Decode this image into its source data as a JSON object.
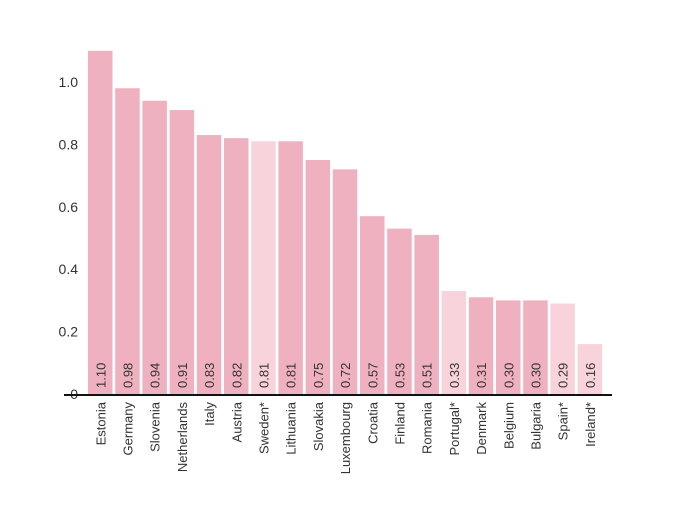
{
  "chart_data": {
    "type": "bar",
    "title": "",
    "xlabel": "",
    "ylabel": "",
    "ylim": [
      0,
      1.1
    ],
    "yticks": [
      0,
      0.2,
      0.4,
      0.6,
      0.8,
      1.0
    ],
    "ytick_labels": [
      "0",
      "0.2",
      "0.4",
      "0.6",
      "0.8",
      "1.0"
    ],
    "grid": false,
    "categories": [
      "Estonia",
      "Germany",
      "Slovenia",
      "Netherlands",
      "Italy",
      "Austria",
      "Sweden*",
      "Lithuania",
      "Slovakia",
      "Luxembourg",
      "Croatia",
      "Finland",
      "Romania",
      "Portugal*",
      "Denmark",
      "Belgium",
      "Bulgaria",
      "Spain*",
      "Ireland*"
    ],
    "values": [
      1.1,
      0.98,
      0.94,
      0.91,
      0.83,
      0.82,
      0.81,
      0.81,
      0.75,
      0.72,
      0.57,
      0.53,
      0.51,
      0.33,
      0.31,
      0.3,
      0.3,
      0.29,
      0.16
    ],
    "value_labels": [
      "1.10",
      "0.98",
      "0.94",
      "0.91",
      "0.83",
      "0.82",
      "0.81",
      "0.81",
      "0.75",
      "0.72",
      "0.57",
      "0.53",
      "0.51",
      "0.33",
      "0.31",
      "0.30",
      "0.30",
      "0.29",
      "0.16"
    ],
    "highlighted": [
      false,
      false,
      false,
      false,
      false,
      false,
      true,
      false,
      false,
      false,
      false,
      false,
      false,
      true,
      false,
      false,
      false,
      true,
      true
    ],
    "colors": {
      "bar": "#efb1bf",
      "bar_highlight": "#f8d3db",
      "axis": "#111111"
    }
  }
}
